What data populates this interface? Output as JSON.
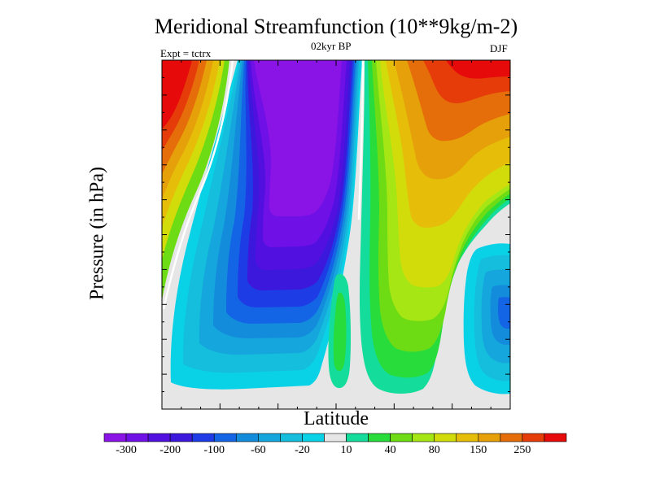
{
  "title": "Meridional Streamfunction (10**9kg/m-2)",
  "experiment": "Expt = tctrx",
  "period": "02kyr BP",
  "season": "DJF",
  "chart_data": {
    "type": "heatmap",
    "title": "Meridional Streamfunction (10**9kg/m-2)",
    "xlabel": "Latitude",
    "ylabel": "Pressure (in hPa)",
    "levels": [
      -300,
      -250,
      -200,
      -150,
      -100,
      -80,
      -60,
      -40,
      -20,
      -10,
      10,
      20,
      40,
      60,
      80,
      100,
      150,
      200,
      250
    ],
    "colorbar_labels": [
      "-300",
      "-200",
      "-100",
      "-60",
      "-20",
      "10",
      "40",
      "80",
      "150",
      "250"
    ],
    "colors": [
      "#8a14e6",
      "#6e10e6",
      "#5210e0",
      "#3c18dc",
      "#1e3ce6",
      "#1464e6",
      "#148cdc",
      "#14a6dc",
      "#14bedc",
      "#0ad2e6",
      "#e6e6e6",
      "#14dc9a",
      "#28dc3c",
      "#6edc14",
      "#a6e614",
      "#d2dc0a",
      "#e6be0a",
      "#e6a00a",
      "#e66e0a",
      "#e63c0a",
      "#e60a0a"
    ],
    "notes": "Contoured meridional streamfunction vs latitude and pressure; strong negative cell (purple, about -300) in tropics, positive (red, about 250) toward the right boundary"
  }
}
